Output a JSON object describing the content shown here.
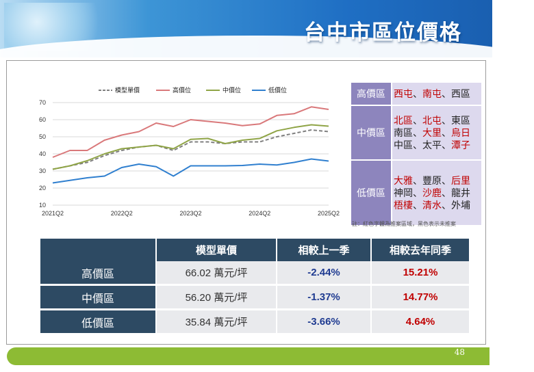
{
  "title": "台中市區位價格",
  "page_number": "48",
  "chart_data": {
    "type": "line",
    "x": [
      "2021Q2",
      "2021Q3",
      "2021Q4",
      "2022Q1",
      "2022Q2",
      "2022Q3",
      "2022Q4",
      "2023Q1",
      "2023Q2",
      "2023Q3",
      "2023Q4",
      "2024Q1",
      "2024Q2",
      "2024Q3",
      "2024Q4",
      "2025Q1",
      "2025Q2"
    ],
    "xticks": [
      "2021Q2",
      "2022Q2",
      "2023Q2",
      "2024Q2",
      "2025Q2"
    ],
    "ylim": [
      10,
      70
    ],
    "yticks": [
      10,
      20,
      30,
      40,
      50,
      60,
      70
    ],
    "legend_position": "top",
    "series": [
      {
        "name": "模型單價",
        "color": "#7f7f7f",
        "dashed": true,
        "values": [
          31,
          33,
          35,
          39,
          42,
          44,
          45,
          42,
          47,
          47,
          46,
          47,
          47,
          50,
          52,
          54,
          53
        ]
      },
      {
        "name": "高價位",
        "color": "#d9787a",
        "dashed": false,
        "values": [
          38,
          42,
          42,
          48,
          51,
          53,
          58,
          56,
          60,
          59,
          58,
          56.5,
          57.5,
          62.5,
          63.5,
          67.5,
          66
        ]
      },
      {
        "name": "中價位",
        "color": "#8fa446",
        "dashed": false,
        "values": [
          31,
          33,
          36,
          40,
          43,
          44,
          45,
          43,
          48.5,
          49,
          46,
          48,
          49,
          53.5,
          55.5,
          57,
          56.2
        ]
      },
      {
        "name": "低價位",
        "color": "#2f7fcf",
        "dashed": false,
        "values": [
          23,
          24.5,
          26,
          27,
          32,
          34,
          32.5,
          27,
          33,
          33,
          33,
          33.2,
          34,
          33.5,
          35,
          37,
          35.8
        ]
      }
    ]
  },
  "side_table": [
    {
      "label": "高價區",
      "lines": [
        [
          {
            "t": "西屯",
            "red": true
          },
          {
            "t": "、",
            "red": false
          },
          {
            "t": "南屯",
            "red": true
          },
          {
            "t": "、西區",
            "red": false
          }
        ]
      ]
    },
    {
      "label": "中價區",
      "lines": [
        [
          {
            "t": "北區",
            "red": true
          },
          {
            "t": "、",
            "red": false
          },
          {
            "t": "北屯",
            "red": true
          },
          {
            "t": "、東區",
            "red": false
          }
        ],
        [
          {
            "t": "南區、",
            "red": false
          },
          {
            "t": "大里",
            "red": true
          },
          {
            "t": "、",
            "red": false
          },
          {
            "t": "烏日",
            "red": true
          }
        ],
        [
          {
            "t": "中區、太平、",
            "red": false
          },
          {
            "t": "潭子",
            "red": true
          }
        ]
      ]
    },
    {
      "label": "低價區",
      "lines": [
        [
          {
            "t": "大雅",
            "red": true
          },
          {
            "t": "、豐原、",
            "red": false
          },
          {
            "t": "后里",
            "red": true
          }
        ],
        [
          {
            "t": "神岡、",
            "red": false
          },
          {
            "t": "沙鹿",
            "red": true
          },
          {
            "t": "、龍井",
            "red": false
          }
        ],
        [
          {
            "t": "梧棲",
            "red": true
          },
          {
            "t": "、",
            "red": false
          },
          {
            "t": "清水",
            "red": true
          },
          {
            "t": "、外埔",
            "red": false
          }
        ]
      ]
    }
  ],
  "note": "註：紅色字體為推案區域，黑色表示未推案",
  "price_table": {
    "headers": [
      "",
      "模型單價",
      "相較上一季",
      "相較去年同季"
    ],
    "rows": [
      {
        "label": "高價區",
        "price": "66.02 萬元/坪",
        "qoq": "-2.44%",
        "yoy": "15.21%"
      },
      {
        "label": "中價區",
        "price": "56.20 萬元/坪",
        "qoq": "-1.37%",
        "yoy": "14.77%"
      },
      {
        "label": "低價區",
        "price": "35.84 萬元/坪",
        "qoq": "-3.66%",
        "yoy": "4.64%"
      }
    ]
  }
}
